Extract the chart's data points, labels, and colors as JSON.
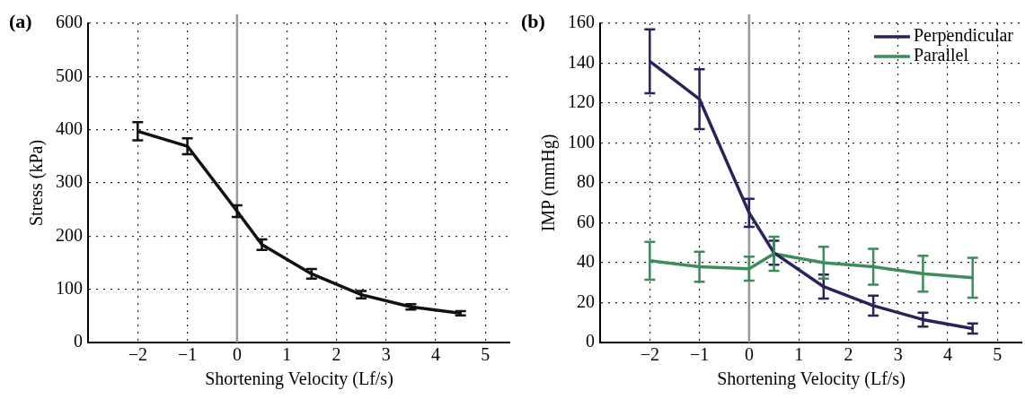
{
  "chart_data": [
    {
      "type": "line",
      "title": "(a)",
      "xlabel": "Shortening Velocity (Lf/s)",
      "ylabel": "Stress (kPa)",
      "x": [
        -2,
        -1,
        0,
        0.5,
        1.5,
        2.5,
        3.5,
        4.5
      ],
      "series": [
        {
          "color": "#111111",
          "values": [
            397,
            369,
            247,
            184,
            129,
            90,
            67,
            55
          ],
          "errors": [
            17,
            15,
            11,
            10,
            9,
            7,
            5,
            4
          ]
        }
      ],
      "xlim": [
        -3,
        5.5
      ],
      "xticks": [
        -2,
        -1,
        0,
        1,
        2,
        3,
        4,
        5
      ],
      "ylim": [
        0,
        600
      ],
      "yticks": [
        0,
        100,
        200,
        300,
        400,
        500,
        600
      ],
      "ref_lines": [
        {
          "axis": "x",
          "value": 0,
          "color": "#999999"
        }
      ],
      "grid": true,
      "legend": false,
      "line_style": "solid"
    },
    {
      "type": "line",
      "title": "(b)",
      "xlabel": "Shortening Velocity (Lf/s)",
      "ylabel": "IMP (mmHg)",
      "x": [
        -2,
        -1,
        0,
        0.5,
        1.5,
        2.5,
        3.5,
        4.5
      ],
      "series": [
        {
          "name": "Perpendicular",
          "color": "#27235e",
          "values": [
            141,
            122,
            65,
            45,
            28,
            18.5,
            11.5,
            7
          ],
          "errors": [
            16,
            15,
            7,
            6,
            6,
            5,
            3.5,
            2.5
          ]
        },
        {
          "name": "Parallel",
          "color": "#3e8c5c",
          "values": [
            41,
            38,
            37,
            44.5,
            40,
            38,
            34.5,
            32.5
          ],
          "errors": [
            9.5,
            7.5,
            6,
            8.5,
            8,
            9,
            9,
            10
          ]
        }
      ],
      "xlim": [
        -3,
        5.5
      ],
      "xticks": [
        -2,
        -1,
        0,
        1,
        2,
        3,
        4,
        5
      ],
      "ylim": [
        0,
        160
      ],
      "yticks": [
        0,
        20,
        40,
        60,
        80,
        100,
        120,
        140,
        160
      ],
      "ref_lines": [
        {
          "axis": "x",
          "value": 0,
          "color": "#999999"
        }
      ],
      "grid": true,
      "legend": "top right",
      "line_style": "solid"
    }
  ]
}
